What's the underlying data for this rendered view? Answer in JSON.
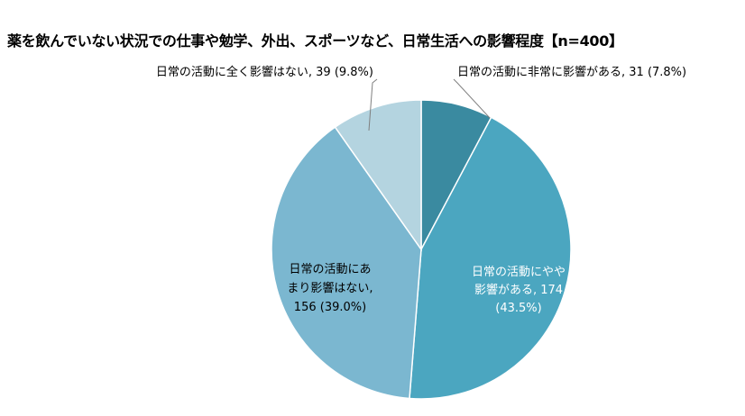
{
  "chart_data": {
    "type": "pie",
    "title": "薬を飲んでいない状況での仕事や勉学、外出、スポーツなど、日常生活への影響程度【n=400】",
    "n": 400,
    "slices": [
      {
        "name": "日常の活動に非常に影響がある",
        "value": 31,
        "percent": "7.8%",
        "color": "#3a8aa0",
        "label_lines": [
          "日常の活動に非常に影響がある, 31 (7.8%)"
        ],
        "label_color": "#000000"
      },
      {
        "name": "日常の活動にやや影響がある",
        "value": 174,
        "percent": "43.5%",
        "color": "#4ba6c0",
        "label_lines": [
          "日常の活動にやや",
          "影響がある, 174",
          "(43.5%)"
        ],
        "label_color": "#ffffff"
      },
      {
        "name": "日常の活動にあまり影響はない",
        "value": 156,
        "percent": "39.0%",
        "color": "#7bb7d0",
        "label_lines": [
          "日常の活動にあ",
          "まり影響はない,",
          "156 (39.0%)"
        ],
        "label_color": "#000000"
      },
      {
        "name": "日常の活動に全く影響はない",
        "value": 39,
        "percent": "9.8%",
        "color": "#b4d4e0",
        "label_lines": [
          "日常の活動に全く影響はない, 39 (9.8%)"
        ],
        "label_color": "#000000"
      }
    ],
    "start_angle": "12 o'clock",
    "direction": "clockwise",
    "legend": "none",
    "slice_border_color": "#ffffff",
    "leader_line_color": "#7f7f7f"
  }
}
